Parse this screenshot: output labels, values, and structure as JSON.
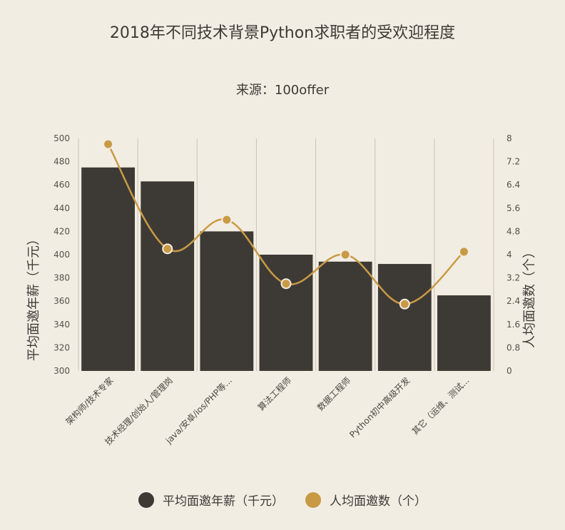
{
  "chart_data": {
    "type": "bar",
    "title": "2018年不同技术背景Python求职者的受欢迎程度",
    "subtitle": "来源：100offer",
    "categories": [
      "架构师/技术专家",
      "技术经理/创始人/管理岗",
      "java/安卓/ios/PHP等...",
      "算法工程师",
      "数据工程师",
      "Python初中高级开发",
      "其它（运维、测试..."
    ],
    "series": [
      {
        "name": "平均面邀年薪（千元）",
        "type": "bar",
        "axis": "left",
        "color": "#3d3a35",
        "values": [
          475,
          463,
          420,
          400,
          394,
          392,
          365
        ]
      },
      {
        "name": "人均面邀数（个）",
        "type": "line",
        "axis": "right",
        "color": "#c99a45",
        "values": [
          7.8,
          4.2,
          5.2,
          3.0,
          4.0,
          2.3,
          4.1
        ]
      }
    ],
    "left_axis": {
      "label": "平均面邀年薪（千元）",
      "ylim": [
        300,
        500
      ],
      "ticks": [
        "500",
        "480",
        "460",
        "440",
        "420",
        "400",
        "380",
        "360",
        "340",
        "320",
        "300"
      ]
    },
    "right_axis": {
      "label": "人均面邀数（个）",
      "ylim": [
        0,
        8
      ],
      "ticks": [
        "8",
        "7.2",
        "6.4",
        "5.6",
        "4.8",
        "4",
        "3.2",
        "2.4",
        "1.6",
        "0.8",
        "0"
      ]
    },
    "grid": true,
    "legend": "bottom"
  }
}
